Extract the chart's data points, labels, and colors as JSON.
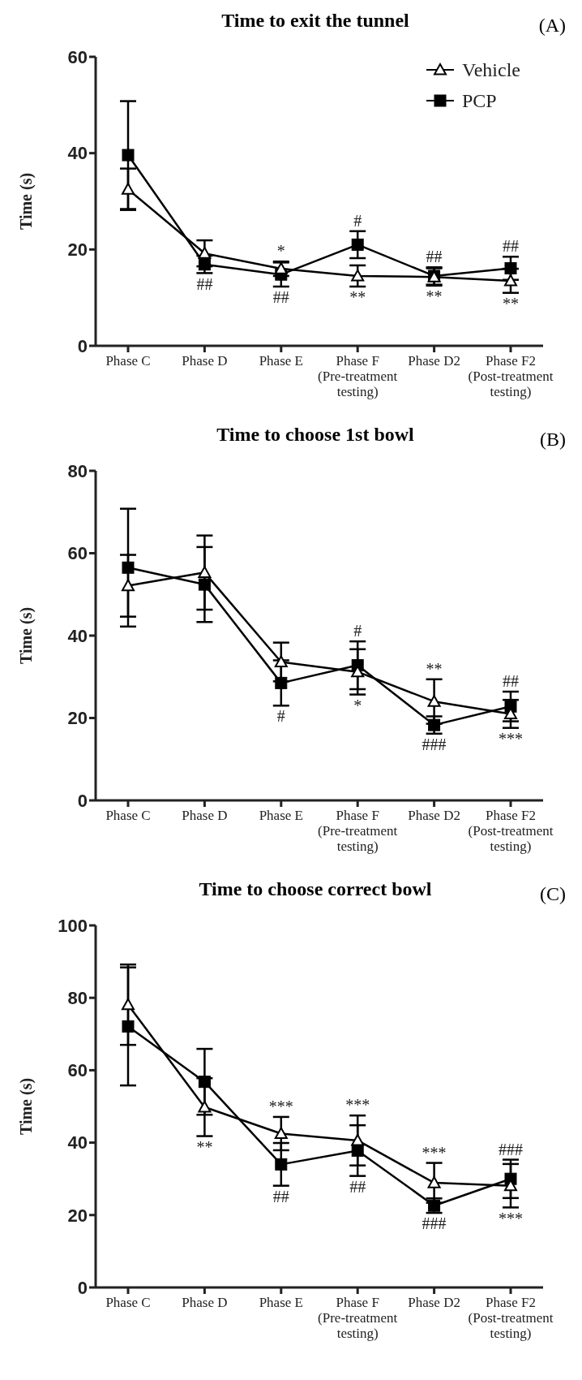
{
  "chart_data": [
    {
      "type": "line",
      "title": "Time to exit the tunnel",
      "ylabel": "Time (s)",
      "categories": [
        "Phase C",
        "Phase D",
        "Phase E",
        "Phase F\n(Pre-treatment\ntesting)",
        "Phase D2",
        "Phase F2\n(Post-treatment\ntesting)"
      ],
      "ylim": [
        0,
        60
      ],
      "yticks": [
        0,
        20,
        40,
        60
      ],
      "grid": false,
      "legend": "top right",
      "series": [
        {
          "name": "Vehicle",
          "color": "#000000",
          "marker": "triangle",
          "values": [
            32.5,
            19.2,
            16.0,
            14.5,
            14.3,
            13.5
          ],
          "errors": [
            4.3,
            2.7,
            1.5,
            2.2,
            1.8,
            2.5
          ]
        },
        {
          "name": "PCP",
          "color": "#000000",
          "marker": "square",
          "values": [
            39.6,
            16.9,
            14.8,
            21.0,
            14.5,
            16.1
          ],
          "errors": [
            11.2,
            1.8,
            2.5,
            2.8,
            1.8,
            2.4
          ]
        }
      ],
      "annotations": [
        "(A)",
        {
          "text": "##",
          "x": "Phase D",
          "y": 15.1
        },
        {
          "text": "*",
          "x": "Phase E",
          "y": 17.5
        },
        {
          "text": "##",
          "x": "Phase E",
          "y": 12.3
        },
        {
          "text": "#",
          "x": "Phase F\n(Pre-treatment\ntesting)",
          "y": 23.8
        },
        {
          "text": "**",
          "x": "Phase F\n(Pre-treatment\ntesting)",
          "y": 12.3
        },
        {
          "text": "##",
          "x": "Phase D2",
          "y": 16.3
        },
        {
          "text": "**",
          "x": "Phase D2",
          "y": 12.5
        },
        {
          "text": "##",
          "x": "Phase F2\n(Post-treatment\ntesting)",
          "y": 18.5
        },
        {
          "text": "**",
          "x": "Phase F2\n(Post-treatment\ntesting)",
          "y": 11.0
        }
      ]
    },
    {
      "type": "line",
      "title": "Time to choose 1st bowl",
      "ylabel": "Time (s)",
      "categories": [
        "Phase C",
        "Phase D",
        "Phase E",
        "Phase F\n(Pre-treatment\ntesting)",
        "Phase D2",
        "Phase F2\n(Post-treatment\ntesting)"
      ],
      "ylim": [
        0,
        80
      ],
      "yticks": [
        0,
        20,
        40,
        60,
        80
      ],
      "grid": false,
      "series": [
        {
          "color": "#000000",
          "marker": "triangle",
          "values": [
            52.1,
            55.3,
            33.6,
            31.2,
            24.0,
            21.0
          ],
          "errors": [
            7.5,
            9.0,
            4.7,
            5.5,
            5.4,
            3.4
          ]
        },
        {
          "color": "#000000",
          "marker": "square",
          "values": [
            56.5,
            52.4,
            28.5,
            32.8,
            18.3,
            22.8
          ],
          "errors": [
            14.3,
            9.1,
            5.5,
            5.8,
            2.1,
            3.6
          ]
        }
      ],
      "annotations": [
        "(B)",
        {
          "text": "#",
          "x": "Phase E",
          "y": 23.0
        },
        {
          "text": "#",
          "x": "Phase F\n(Pre-treatment\ntesting)",
          "y": 38.6
        },
        {
          "text": "*",
          "x": "Phase F\n(Pre-treatment\ntesting)",
          "y": 25.7
        },
        {
          "text": "**",
          "x": "Phase D2",
          "y": 29.4
        },
        {
          "text": "###",
          "x": "Phase D2",
          "y": 16.2
        },
        {
          "text": "##",
          "x": "Phase F2\n(Post-treatment\ntesting)",
          "y": 26.4
        },
        {
          "text": "***",
          "x": "Phase F2\n(Post-treatment\ntesting)",
          "y": 17.6
        }
      ]
    },
    {
      "type": "line",
      "title": "Time to choose correct bowl",
      "ylabel": "Time (s)",
      "categories": [
        "Phase C",
        "Phase D",
        "Phase E",
        "Phase F\n(Pre-treatment\ntesting)",
        "Phase D2",
        "Phase F2\n(Post-treatment\ntesting)"
      ],
      "ylim": [
        0,
        100
      ],
      "yticks": [
        0,
        20,
        40,
        60,
        80,
        100
      ],
      "grid": false,
      "series": [
        {
          "color": "#000000",
          "marker": "triangle",
          "values": [
            78.1,
            49.8,
            42.5,
            40.6,
            28.9,
            28.1
          ],
          "errors": [
            11.1,
            8.0,
            4.6,
            6.9,
            5.5,
            6.0
          ]
        },
        {
          "color": "#000000",
          "marker": "square",
          "values": [
            72.1,
            56.8,
            34.0,
            37.8,
            22.6,
            30.0
          ],
          "errors": [
            16.3,
            9.1,
            5.9,
            7.0,
            2.0,
            5.3
          ]
        }
      ],
      "annotations": [
        "(C)",
        {
          "text": "**",
          "x": "Phase D",
          "y": 41.8
        },
        {
          "text": "***",
          "x": "Phase E",
          "y": 47.1
        },
        {
          "text": "##",
          "x": "Phase E",
          "y": 28.1
        },
        {
          "text": "***",
          "x": "Phase F\n(Pre-treatment\ntesting)",
          "y": 47.5
        },
        {
          "text": "##",
          "x": "Phase F\n(Pre-treatment\ntesting)",
          "y": 30.8
        },
        {
          "text": "***",
          "x": "Phase D2",
          "y": 34.4
        },
        {
          "text": "###",
          "x": "Phase D2",
          "y": 20.6
        },
        {
          "text": "###",
          "x": "Phase F2\n(Post-treatment\ntesting)",
          "y": 35.3
        },
        {
          "text": "***",
          "x": "Phase F2\n(Post-treatment\ntesting)",
          "y": 22.1
        }
      ]
    }
  ]
}
